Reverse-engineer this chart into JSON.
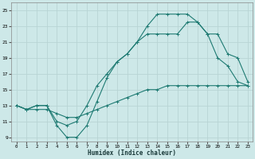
{
  "xlabel": "Humidex (Indice chaleur)",
  "xlim": [
    -0.5,
    23.5
  ],
  "ylim": [
    8.5,
    26
  ],
  "yticks": [
    9,
    11,
    13,
    15,
    17,
    19,
    21,
    23,
    25
  ],
  "xticks": [
    0,
    1,
    2,
    3,
    4,
    5,
    6,
    7,
    8,
    9,
    10,
    11,
    12,
    13,
    14,
    15,
    16,
    17,
    18,
    19,
    20,
    21,
    22,
    23
  ],
  "bg_color": "#cde8e8",
  "grid_color": "#b8d4d4",
  "line_color": "#1e7a72",
  "line1_x": [
    0,
    1,
    2,
    3,
    4,
    5,
    6,
    7,
    8,
    9,
    10,
    11,
    12,
    13,
    14,
    15,
    16,
    17,
    18,
    19,
    20,
    21,
    22,
    23
  ],
  "line1_y": [
    13,
    12.5,
    13,
    13,
    10.5,
    9,
    9,
    10.5,
    13.5,
    16.5,
    18.5,
    19.5,
    21,
    23,
    24.5,
    24.5,
    24.5,
    24.5,
    23.5,
    22,
    19,
    18,
    16,
    15.5
  ],
  "line2_x": [
    0,
    1,
    2,
    3,
    4,
    5,
    6,
    7,
    8,
    9,
    10,
    11,
    12,
    13,
    14,
    15,
    16,
    17,
    18,
    19,
    20,
    21,
    22,
    23
  ],
  "line2_y": [
    13,
    12.5,
    13,
    13,
    11,
    10.5,
    11,
    13,
    15.5,
    17,
    18.5,
    19.5,
    21,
    22,
    22,
    22,
    22,
    23.5,
    23.5,
    22,
    22,
    19.5,
    19,
    16
  ],
  "line3_x": [
    0,
    1,
    2,
    3,
    4,
    5,
    6,
    7,
    8,
    9,
    10,
    11,
    12,
    13,
    14,
    15,
    16,
    17,
    18,
    19,
    20,
    21,
    22,
    23
  ],
  "line3_y": [
    13,
    12.5,
    12.5,
    12.5,
    12,
    11.5,
    11.5,
    12,
    12.5,
    13,
    13.5,
    14,
    14.5,
    15,
    15,
    15.5,
    15.5,
    15.5,
    15.5,
    15.5,
    15.5,
    15.5,
    15.5,
    15.5
  ]
}
